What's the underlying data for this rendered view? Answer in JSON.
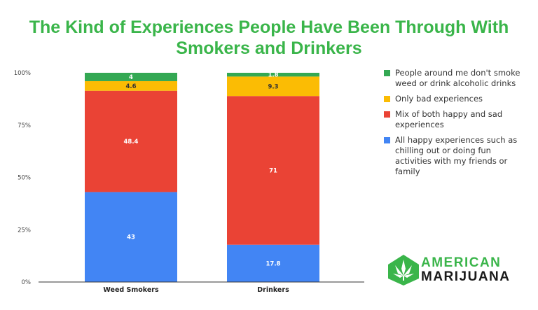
{
  "chart_data": {
    "type": "bar",
    "stacked": true,
    "title": "The Kind of Experiences People Have Been Through With Smokers and Drinkers",
    "title_lines": [
      "The Kind of Experiences People Have Been Through With",
      "Smokers and Drinkers"
    ],
    "categories": [
      "Weed Smokers",
      "Drinkers"
    ],
    "series": [
      {
        "name": "All happy experiences such as chilling out or doing fun activities with my friends or family",
        "legend_lines": [
          "All happy experiences such as",
          "chilling out or doing fun",
          "activities with my friends or",
          "family"
        ],
        "color": "#4285f4",
        "values": [
          43,
          17.8
        ],
        "labels": [
          "43",
          "17.8"
        ]
      },
      {
        "name": "Mix of both happy and sad experiences",
        "legend_lines": [
          "Mix of both happy and sad",
          "experiences"
        ],
        "color": "#ea4335",
        "values": [
          48.4,
          71
        ],
        "labels": [
          "48.4",
          "71"
        ]
      },
      {
        "name": "Only bad experiences",
        "legend_lines": [
          "Only bad experiences"
        ],
        "color": "#fbbc04",
        "values": [
          4.6,
          9.3
        ],
        "labels": [
          "4.6",
          "9.3"
        ]
      },
      {
        "name": "People around me don't smoke weed or drink alcoholic drinks",
        "legend_lines": [
          "People around me don't smoke",
          "weed or drink alcoholic drinks"
        ],
        "color": "#34a853",
        "values": [
          4,
          1.8
        ],
        "labels": [
          "4",
          "1.8"
        ]
      }
    ],
    "y_ticks": [
      "0%",
      "25%",
      "50%",
      "75%",
      "100%"
    ],
    "ylim": [
      0,
      100
    ],
    "grid": false,
    "legend_position": "right"
  },
  "logo": {
    "line1": "AMERICAN",
    "line2": "MARIJUANA",
    "brand_color": "#3ab54a"
  }
}
